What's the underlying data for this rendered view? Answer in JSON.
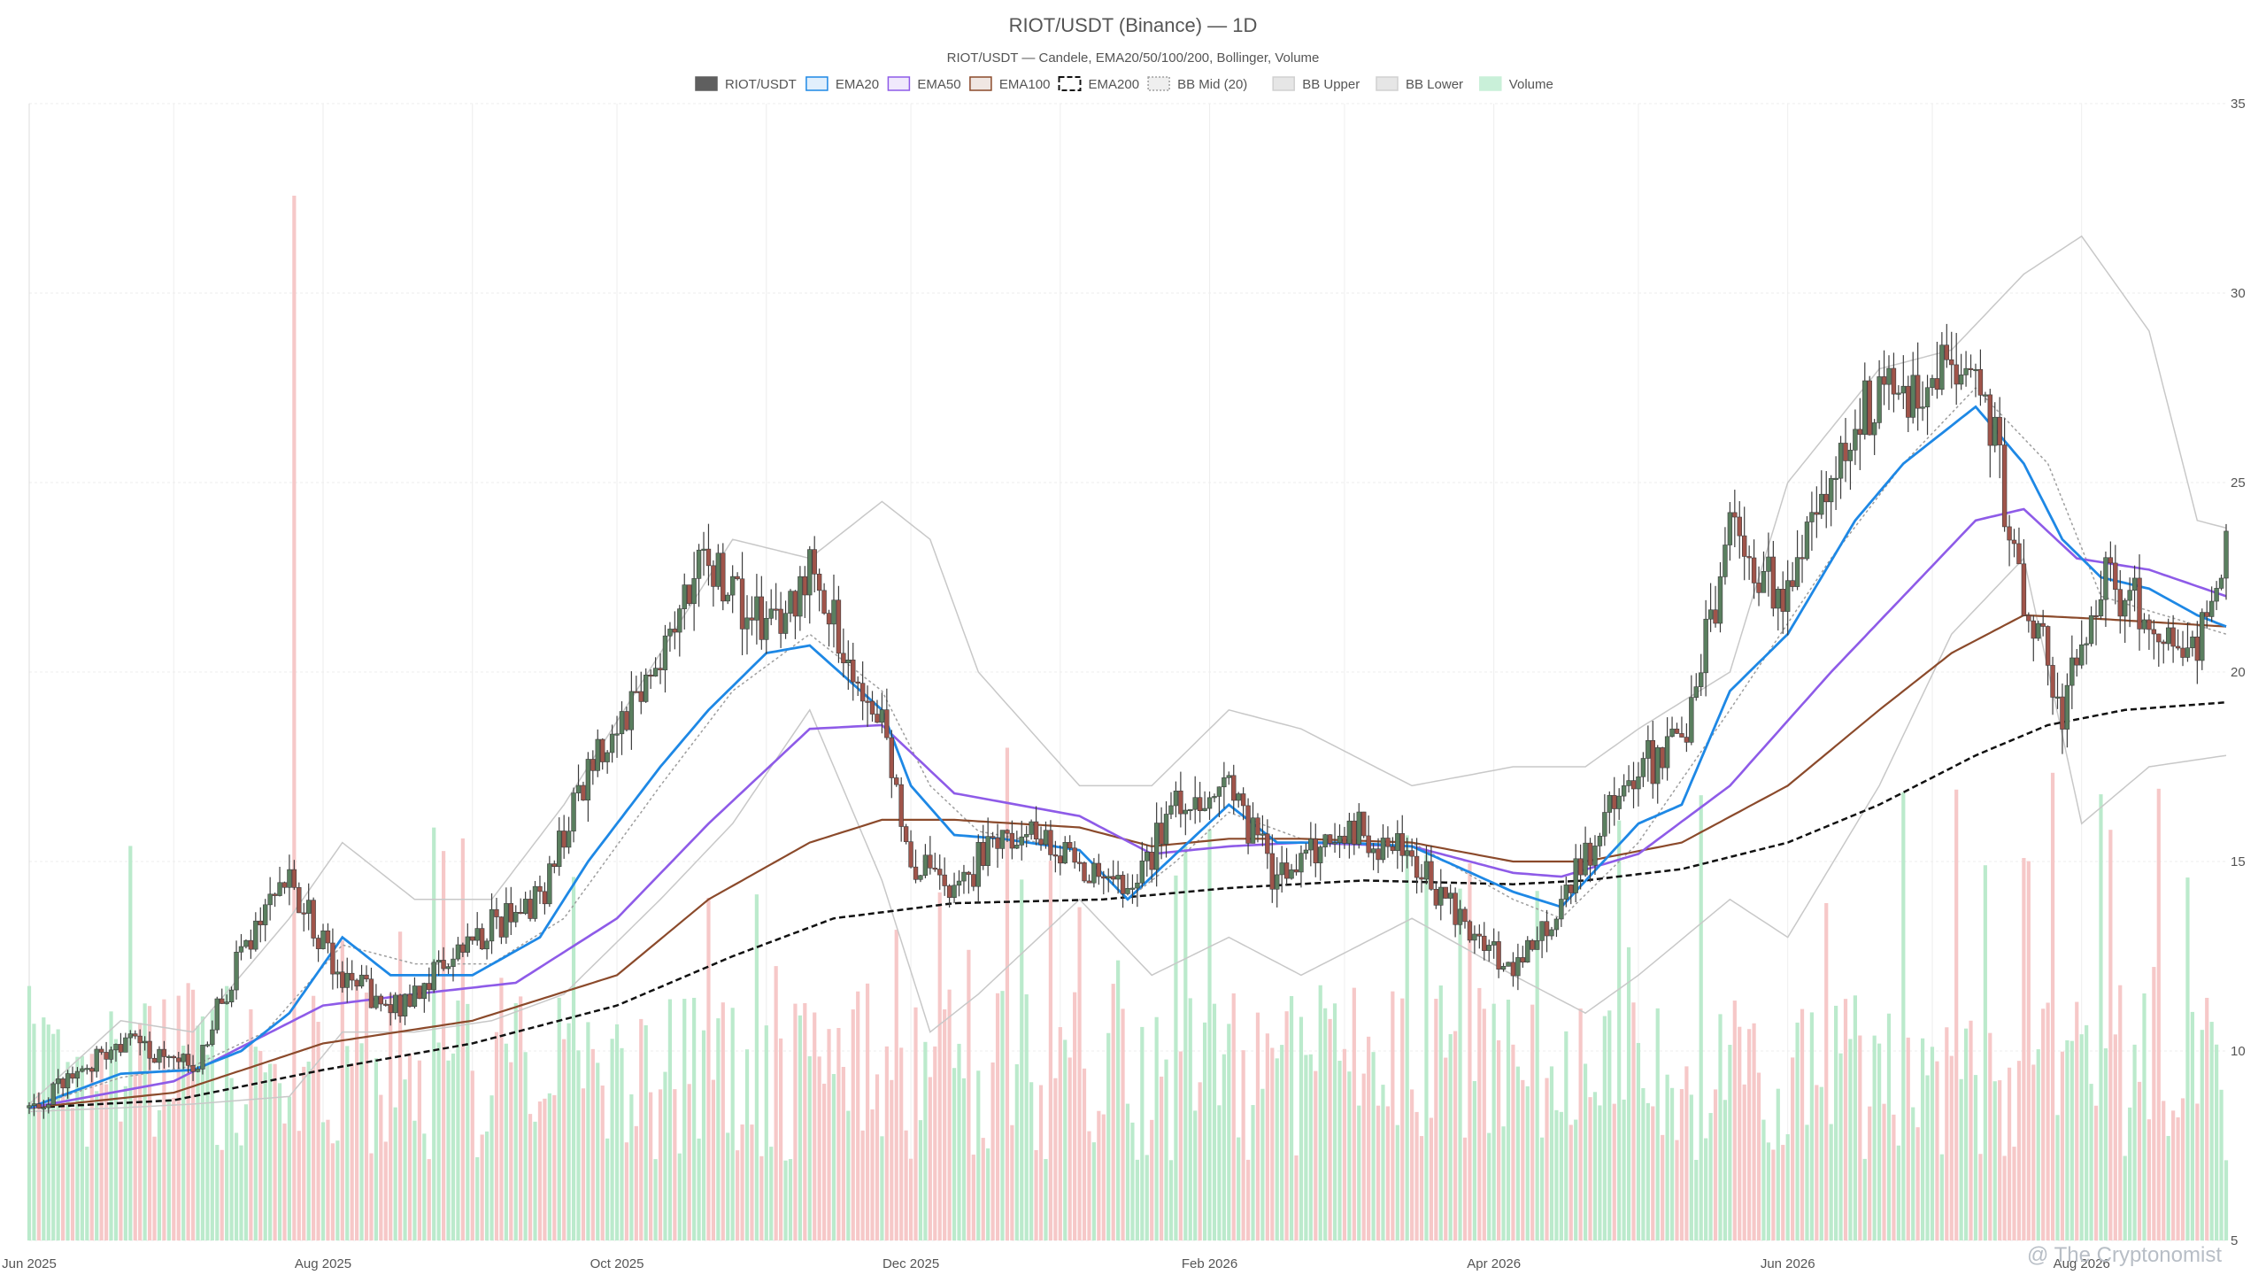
{
  "chart_data": {
    "type": "candlestick",
    "title": "RIOT/USDT (Binance) — 1D",
    "subtitle": "RIOT/USDT — Candele, EMA20/50/100/200, Bollinger, Volume",
    "legend": [
      {
        "label": "RIOT/USDT",
        "color": "#5f5f5f",
        "style": "solid-fill"
      },
      {
        "label": "EMA20",
        "color": "#1e88e5",
        "style": "line"
      },
      {
        "label": "EMA50",
        "color": "#8e5be8",
        "style": "line"
      },
      {
        "label": "EMA100",
        "color": "#8b4a2b",
        "style": "line"
      },
      {
        "label": "EMA200",
        "color": "#111111",
        "style": "dashed"
      },
      {
        "label": "BB Mid (20)",
        "color": "#9e9e9e",
        "style": "dotted"
      },
      {
        "label": "BB Upper",
        "color": "#c8c8c8",
        "style": "line"
      },
      {
        "label": "BB Lower",
        "color": "#c8c8c8",
        "style": "line"
      },
      {
        "label": "Volume",
        "color": "#8fdcb0",
        "style": "fill"
      }
    ],
    "legend_position": "top-center",
    "y_axis": {
      "position": "right",
      "min": 5,
      "max": 35,
      "ticks": [
        5,
        10,
        15,
        20,
        25,
        30,
        35
      ]
    },
    "x_axis": {
      "start": "2025-06-01",
      "end": "2026-08-31",
      "ticks": [
        "Jun 2025",
        "Aug 2025",
        "Oct 2025",
        "Dec 2025",
        "Feb 2026",
        "Apr 2026",
        "Jun 2026",
        "Aug 2026"
      ]
    },
    "grid": true,
    "colors": {
      "up": "#5a7f5f",
      "down": "#a0544a",
      "vol_up": "#b7e9c9",
      "vol_down": "#f6c5c5"
    },
    "price_path": [
      [
        "2025-06-01",
        8.5
      ],
      [
        "2025-06-20",
        10.2
      ],
      [
        "2025-07-05",
        9.5
      ],
      [
        "2025-07-15",
        12.5
      ],
      [
        "2025-07-25",
        14.5
      ],
      [
        "2025-08-05",
        12.0
      ],
      [
        "2025-08-15",
        11.0
      ],
      [
        "2025-09-01",
        13.0
      ],
      [
        "2025-09-15",
        14.0
      ],
      [
        "2025-09-25",
        17.5
      ],
      [
        "2025-10-10",
        20.5
      ],
      [
        "2025-10-20",
        23.0
      ],
      [
        "2025-11-01",
        21.0
      ],
      [
        "2025-11-10",
        22.5
      ],
      [
        "2025-11-25",
        18.5
      ],
      [
        "2025-12-01",
        15.0
      ],
      [
        "2025-12-10",
        14.0
      ],
      [
        "2025-12-20",
        16.0
      ],
      [
        "2026-01-05",
        15.0
      ],
      [
        "2026-01-15",
        14.0
      ],
      [
        "2026-01-25",
        16.5
      ],
      [
        "2026-02-05",
        17.0
      ],
      [
        "2026-02-15",
        14.5
      ],
      [
        "2026-03-01",
        16.0
      ],
      [
        "2026-03-15",
        15.0
      ],
      [
        "2026-04-05",
        12.0
      ],
      [
        "2026-04-15",
        14.0
      ],
      [
        "2026-05-01",
        17.5
      ],
      [
        "2026-05-10",
        18.0
      ],
      [
        "2026-05-20",
        23.5
      ],
      [
        "2026-06-01",
        22.0
      ],
      [
        "2026-06-15",
        27.0
      ],
      [
        "2026-06-25",
        27.5
      ],
      [
        "2026-07-10",
        28.5
      ],
      [
        "2026-07-20",
        22.0
      ],
      [
        "2026-07-28",
        19.0
      ],
      [
        "2026-08-05",
        22.5
      ],
      [
        "2026-08-15",
        21.5
      ],
      [
        "2026-08-25",
        20.5
      ],
      [
        "2026-08-31",
        23.5
      ]
    ],
    "ema20": [
      [
        "2025-06-01",
        8.5
      ],
      [
        "2025-06-20",
        9.4
      ],
      [
        "2025-07-05",
        9.5
      ],
      [
        "2025-07-15",
        10.0
      ],
      [
        "2025-07-25",
        11.0
      ],
      [
        "2025-08-05",
        13.0
      ],
      [
        "2025-08-15",
        12.0
      ],
      [
        "2025-09-01",
        12.0
      ],
      [
        "2025-09-15",
        13.0
      ],
      [
        "2025-09-25",
        15.0
      ],
      [
        "2025-10-10",
        17.5
      ],
      [
        "2025-10-20",
        19.0
      ],
      [
        "2025-11-01",
        20.5
      ],
      [
        "2025-11-10",
        20.7
      ],
      [
        "2025-11-25",
        19.0
      ],
      [
        "2025-12-01",
        17.0
      ],
      [
        "2025-12-10",
        15.7
      ],
      [
        "2025-12-20",
        15.6
      ],
      [
        "2026-01-05",
        15.3
      ],
      [
        "2026-01-15",
        14.0
      ],
      [
        "2026-01-25",
        15.2
      ],
      [
        "2026-02-05",
        16.5
      ],
      [
        "2026-02-15",
        15.5
      ],
      [
        "2026-03-01",
        15.5
      ],
      [
        "2026-03-15",
        15.4
      ],
      [
        "2026-04-05",
        14.2
      ],
      [
        "2026-04-15",
        13.8
      ],
      [
        "2026-05-01",
        16.0
      ],
      [
        "2026-05-10",
        16.5
      ],
      [
        "2026-05-20",
        19.5
      ],
      [
        "2026-06-01",
        21.0
      ],
      [
        "2026-06-15",
        24.0
      ],
      [
        "2026-06-25",
        25.5
      ],
      [
        "2026-07-10",
        27.0
      ],
      [
        "2026-07-20",
        25.5
      ],
      [
        "2026-07-28",
        23.5
      ],
      [
        "2026-08-05",
        22.5
      ],
      [
        "2026-08-15",
        22.2
      ],
      [
        "2026-08-25",
        21.5
      ],
      [
        "2026-08-31",
        21.2
      ]
    ],
    "ema50": [
      [
        "2025-06-01",
        8.5
      ],
      [
        "2025-07-01",
        9.2
      ],
      [
        "2025-08-01",
        11.2
      ],
      [
        "2025-08-20",
        11.5
      ],
      [
        "2025-09-10",
        11.8
      ],
      [
        "2025-10-01",
        13.5
      ],
      [
        "2025-10-20",
        16.0
      ],
      [
        "2025-11-10",
        18.5
      ],
      [
        "2025-11-25",
        18.6
      ],
      [
        "2025-12-10",
        16.8
      ],
      [
        "2026-01-05",
        16.2
      ],
      [
        "2026-01-20",
        15.2
      ],
      [
        "2026-02-05",
        15.4
      ],
      [
        "2026-02-20",
        15.5
      ],
      [
        "2026-03-15",
        15.4
      ],
      [
        "2026-04-05",
        14.7
      ],
      [
        "2026-04-15",
        14.6
      ],
      [
        "2026-05-01",
        15.2
      ],
      [
        "2026-05-20",
        17.0
      ],
      [
        "2026-06-10",
        20.0
      ],
      [
        "2026-06-25",
        22.0
      ],
      [
        "2026-07-10",
        24.0
      ],
      [
        "2026-07-20",
        24.3
      ],
      [
        "2026-07-31",
        23.0
      ],
      [
        "2026-08-15",
        22.7
      ],
      [
        "2026-08-31",
        22.0
      ]
    ],
    "ema100": [
      [
        "2025-06-01",
        8.5
      ],
      [
        "2025-07-01",
        8.9
      ],
      [
        "2025-08-01",
        10.2
      ],
      [
        "2025-09-01",
        10.8
      ],
      [
        "2025-10-01",
        12.0
      ],
      [
        "2025-10-20",
        14.0
      ],
      [
        "2025-11-10",
        15.5
      ],
      [
        "2025-11-25",
        16.1
      ],
      [
        "2025-12-10",
        16.1
      ],
      [
        "2026-01-05",
        15.9
      ],
      [
        "2026-01-20",
        15.4
      ],
      [
        "2026-02-05",
        15.6
      ],
      [
        "2026-02-20",
        15.6
      ],
      [
        "2026-03-15",
        15.5
      ],
      [
        "2026-04-05",
        15.0
      ],
      [
        "2026-04-20",
        15.0
      ],
      [
        "2026-05-10",
        15.5
      ],
      [
        "2026-06-01",
        17.0
      ],
      [
        "2026-06-20",
        19.0
      ],
      [
        "2026-07-05",
        20.5
      ],
      [
        "2026-07-20",
        21.5
      ],
      [
        "2026-08-05",
        21.4
      ],
      [
        "2026-08-31",
        21.2
      ]
    ],
    "ema200": [
      [
        "2025-06-01",
        8.5
      ],
      [
        "2025-07-01",
        8.7
      ],
      [
        "2025-08-01",
        9.5
      ],
      [
        "2025-09-01",
        10.2
      ],
      [
        "2025-10-01",
        11.2
      ],
      [
        "2025-10-25",
        12.5
      ],
      [
        "2025-11-15",
        13.5
      ],
      [
        "2025-12-10",
        13.9
      ],
      [
        "2026-01-10",
        14.0
      ],
      [
        "2026-02-05",
        14.3
      ],
      [
        "2026-03-05",
        14.5
      ],
      [
        "2026-04-05",
        14.4
      ],
      [
        "2026-04-20",
        14.5
      ],
      [
        "2026-05-10",
        14.8
      ],
      [
        "2026-06-01",
        15.5
      ],
      [
        "2026-06-20",
        16.5
      ],
      [
        "2026-07-10",
        17.8
      ],
      [
        "2026-07-25",
        18.6
      ],
      [
        "2026-08-10",
        19.0
      ],
      [
        "2026-08-31",
        19.2
      ]
    ],
    "bb_mid": [
      [
        "2025-06-01",
        8.5
      ],
      [
        "2025-06-20",
        9.3
      ],
      [
        "2025-07-05",
        9.6
      ],
      [
        "2025-07-20",
        10.5
      ],
      [
        "2025-08-05",
        12.8
      ],
      [
        "2025-08-20",
        12.3
      ],
      [
        "2025-09-05",
        12.3
      ],
      [
        "2025-09-20",
        13.5
      ],
      [
        "2025-10-10",
        17.0
      ],
      [
        "2025-10-25",
        19.5
      ],
      [
        "2025-11-10",
        21.0
      ],
      [
        "2025-11-25",
        19.5
      ],
      [
        "2025-12-05",
        17.0
      ],
      [
        "2025-12-15",
        15.8
      ],
      [
        "2026-01-05",
        15.3
      ],
      [
        "2026-01-15",
        14.0
      ],
      [
        "2026-01-25",
        15.0
      ],
      [
        "2026-02-05",
        16.3
      ],
      [
        "2026-02-20",
        15.6
      ],
      [
        "2026-03-15",
        15.5
      ],
      [
        "2026-04-05",
        14.0
      ],
      [
        "2026-04-15",
        13.5
      ],
      [
        "2026-05-01",
        15.5
      ],
      [
        "2026-05-20",
        19.0
      ],
      [
        "2026-06-10",
        23.0
      ],
      [
        "2026-06-25",
        25.5
      ],
      [
        "2026-07-10",
        27.5
      ],
      [
        "2026-07-25",
        25.5
      ],
      [
        "2026-08-05",
        22.0
      ],
      [
        "2026-08-31",
        21.0
      ]
    ],
    "bb_upper": [
      [
        "2025-06-01",
        8.6
      ],
      [
        "2025-06-20",
        10.8
      ],
      [
        "2025-07-05",
        10.5
      ],
      [
        "2025-07-25",
        13.5
      ],
      [
        "2025-08-05",
        15.5
      ],
      [
        "2025-08-20",
        14.0
      ],
      [
        "2025-09-05",
        14.0
      ],
      [
        "2025-09-20",
        16.5
      ],
      [
        "2025-10-10",
        20.5
      ],
      [
        "2025-10-25",
        23.5
      ],
      [
        "2025-11-10",
        23.0
      ],
      [
        "2025-11-25",
        24.5
      ],
      [
        "2025-12-05",
        23.5
      ],
      [
        "2025-12-15",
        20.0
      ],
      [
        "2026-01-05",
        17.0
      ],
      [
        "2026-01-20",
        17.0
      ],
      [
        "2026-02-05",
        19.0
      ],
      [
        "2026-02-20",
        18.5
      ],
      [
        "2026-03-15",
        17.0
      ],
      [
        "2026-04-05",
        17.5
      ],
      [
        "2026-04-20",
        17.5
      ],
      [
        "2026-05-01",
        18.5
      ],
      [
        "2026-05-20",
        20.0
      ],
      [
        "2026-06-01",
        25.0
      ],
      [
        "2026-06-20",
        28.0
      ],
      [
        "2026-07-05",
        28.5
      ],
      [
        "2026-07-20",
        30.5
      ],
      [
        "2026-08-01",
        31.5
      ],
      [
        "2026-08-15",
        29.0
      ],
      [
        "2026-08-25",
        24.0
      ],
      [
        "2026-08-31",
        23.8
      ]
    ],
    "bb_lower": [
      [
        "2025-06-01",
        8.4
      ],
      [
        "2025-06-20",
        8.5
      ],
      [
        "2025-07-05",
        8.6
      ],
      [
        "2025-07-25",
        8.8
      ],
      [
        "2025-08-05",
        10.5
      ],
      [
        "2025-08-20",
        10.5
      ],
      [
        "2025-09-05",
        10.8
      ],
      [
        "2025-09-20",
        11.5
      ],
      [
        "2025-10-10",
        14.0
      ],
      [
        "2025-10-25",
        16.0
      ],
      [
        "2025-11-10",
        19.0
      ],
      [
        "2025-11-25",
        14.5
      ],
      [
        "2025-12-05",
        10.5
      ],
      [
        "2025-12-15",
        11.5
      ],
      [
        "2026-01-05",
        14.0
      ],
      [
        "2026-01-20",
        12.0
      ],
      [
        "2026-02-05",
        13.0
      ],
      [
        "2026-02-20",
        12.0
      ],
      [
        "2026-03-15",
        13.5
      ],
      [
        "2026-04-05",
        12.0
      ],
      [
        "2026-04-20",
        11.0
      ],
      [
        "2026-05-01",
        12.0
      ],
      [
        "2026-05-20",
        14.0
      ],
      [
        "2026-06-01",
        13.0
      ],
      [
        "2026-06-20",
        17.0
      ],
      [
        "2026-07-05",
        21.0
      ],
      [
        "2026-07-20",
        23.0
      ],
      [
        "2026-08-01",
        16.0
      ],
      [
        "2026-08-15",
        17.5
      ],
      [
        "2026-08-31",
        17.8
      ]
    ],
    "volume_note": "Volume bars in the lower area; largest spike in late Jul 2025."
  },
  "watermark": "@ The Cryptonomist"
}
